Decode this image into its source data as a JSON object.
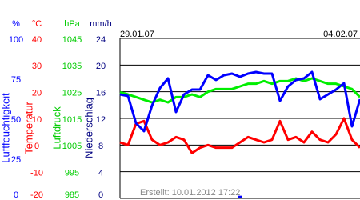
{
  "chart_data": {
    "type": "line",
    "axes": [
      {
        "unit": "%",
        "label": "Luftfeuchtigkeit",
        "color": "#0000ff",
        "lim": [
          0,
          100
        ],
        "ticks": [
          0,
          25,
          50,
          75,
          100
        ]
      },
      {
        "unit": "°C",
        "label": "Temperatur",
        "color": "#ff0000",
        "lim": [
          -20,
          40
        ],
        "ticks": [
          -20,
          -10,
          0,
          10,
          20,
          30,
          40
        ]
      },
      {
        "unit": "hPa",
        "label": "Luftdruck",
        "color": "#00cc00",
        "lim": [
          985,
          1045
        ],
        "ticks": [
          985,
          995,
          1005,
          1015,
          1025,
          1035,
          1045
        ]
      },
      {
        "unit": "mm/h",
        "label": "Niederschlag",
        "color": "#000080",
        "lim": [
          0,
          24
        ],
        "ticks": [
          0,
          4,
          8,
          12,
          16,
          20,
          24
        ]
      }
    ],
    "date_labels": [
      "29.01.07",
      "04.02.07"
    ],
    "annotation": "Erstellt: 10.01.2012 17:22",
    "grid": true,
    "series": [
      {
        "axis": 2,
        "kind": "line",
        "color": "#00ee00",
        "values": [
          1024.8,
          1024,
          1023,
          1022,
          1021,
          1022,
          1021,
          1023,
          1023,
          1024,
          1023,
          1025,
          1026,
          1026,
          1026,
          1027,
          1028,
          1028,
          1029,
          1028,
          1029,
          1029,
          1030,
          1029,
          1030,
          1029,
          1028,
          1028,
          1027,
          1026,
          1023
        ]
      },
      {
        "axis": 1,
        "kind": "line",
        "color": "#ff0000",
        "values": [
          1,
          0,
          8,
          9,
          2,
          0,
          1,
          3,
          2,
          -3,
          -1,
          0,
          -1,
          -1,
          -1,
          1,
          3,
          2,
          1,
          2,
          9,
          2,
          3,
          1,
          5,
          2,
          1,
          4,
          10,
          2,
          -1
        ]
      },
      {
        "axis": 0,
        "kind": "line",
        "color": "#0000ff",
        "values": [
          65,
          64,
          47,
          42,
          58,
          69,
          75,
          54,
          65,
          68,
          68,
          77,
          74,
          77,
          78,
          76,
          78,
          79,
          78,
          78,
          61,
          70,
          74,
          75,
          79,
          62,
          65,
          68,
          72,
          45,
          62
        ]
      },
      {
        "axis": 3,
        "kind": "bar",
        "color": "#0000ff",
        "values": [
          0,
          0,
          0,
          0,
          0,
          0,
          0,
          0,
          0,
          0,
          0,
          0,
          0,
          0,
          0,
          0.4,
          0,
          0,
          0,
          0,
          0,
          0,
          0,
          0,
          0,
          0,
          0,
          0,
          0,
          0,
          0
        ]
      }
    ]
  }
}
